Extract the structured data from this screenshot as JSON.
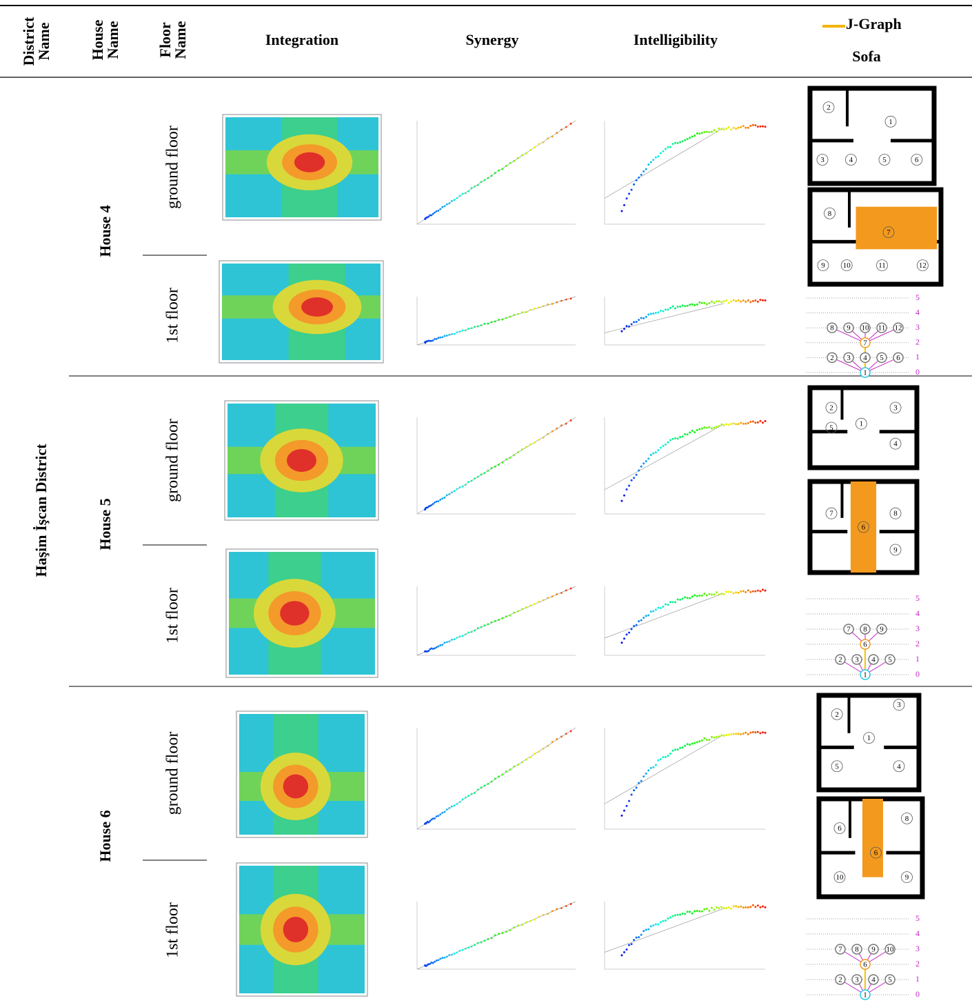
{
  "table": {
    "headers": [
      "District Name",
      "House Name",
      "Floor Name",
      "Integration",
      "Synergy",
      "Intelligibility"
    ],
    "legend": {
      "jgraph": "J-Graph",
      "sofa": "Sofa"
    },
    "district": "Haşim İşcan District",
    "houses": [
      {
        "name": "House 4",
        "floors": [
          "ground floor",
          "1st floor"
        ],
        "plans": [
          {
            "rooms": [
              "2",
              "1",
              "3",
              "4",
              "5",
              "6"
            ]
          },
          {
            "rooms": [
              "8",
              "7",
              "9",
              "10",
              "11",
              "12"
            ]
          }
        ],
        "jgraph": {
          "levels": [
            5,
            4,
            3,
            2,
            1,
            0
          ],
          "nodes": [
            [],
            [],
            [
              "8",
              "9",
              "10",
              "11",
              "12"
            ],
            [
              "7"
            ],
            [
              "2",
              "3",
              "4",
              "5",
              "6"
            ],
            [
              "1"
            ]
          ]
        }
      },
      {
        "name": "House 5",
        "floors": [
          "ground floor",
          "1st floor"
        ],
        "plans": [
          {
            "rooms": [
              "2",
              "1",
              "3",
              "5",
              "4"
            ]
          },
          {
            "rooms": [
              "7",
              "6",
              "8",
              "9"
            ]
          }
        ],
        "jgraph": {
          "levels": [
            5,
            4,
            3,
            2,
            1,
            0
          ],
          "nodes": [
            [],
            [],
            [
              "7",
              "8",
              "9"
            ],
            [
              "6"
            ],
            [
              "2",
              "3",
              "4",
              "5"
            ],
            [
              "1"
            ]
          ]
        }
      },
      {
        "name": "House 6",
        "floors": [
          "ground floor",
          "1st floor"
        ],
        "plans": [
          {
            "rooms": [
              "2",
              "3",
              "1",
              "5",
              "4"
            ]
          },
          {
            "rooms": [
              "6",
              "6",
              "8",
              "10",
              "9"
            ]
          }
        ],
        "jgraph": {
          "levels": [
            5,
            4,
            3,
            2,
            1,
            0
          ],
          "nodes": [
            [],
            [],
            [
              "7",
              "8",
              "9",
              "10"
            ],
            [
              "6"
            ],
            [
              "2",
              "3",
              "4",
              "5"
            ],
            [
              "1"
            ]
          ]
        }
      }
    ]
  }
}
